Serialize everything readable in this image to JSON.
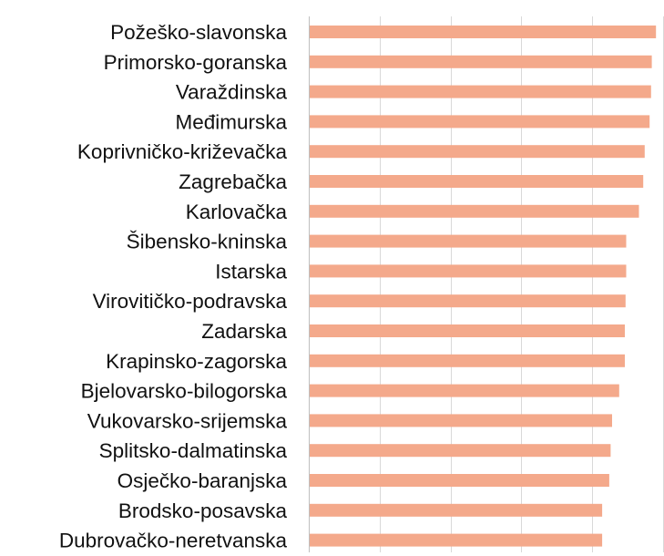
{
  "chart_data": {
    "type": "bar",
    "orientation": "horizontal",
    "categories": [
      "Požeško-slavonska",
      "Primorsko-goranska",
      "Varaždinska",
      "Međimurska",
      "Koprivničko-križevačka",
      "Zagrebačka",
      "Karlovačka",
      "Šibensko-kninska",
      "Istarska",
      "Virovitičko-podravska",
      "Zadarska",
      "Krapinsko-zagorska",
      "Bjelovarsko-bilogorska",
      "Vukovarsko-srijemska",
      "Splitsko-dalmatinska",
      "Osječko-baranjska",
      "Brodsko-posavska",
      "Dubrovačko-neretvanska"
    ],
    "values": [
      4.9,
      4.84,
      4.83,
      4.81,
      4.74,
      4.72,
      4.66,
      4.48,
      4.48,
      4.47,
      4.46,
      4.46,
      4.38,
      4.28,
      4.26,
      4.24,
      4.14,
      4.14
    ],
    "xlim": [
      0,
      5
    ],
    "grid": true,
    "bar_color": "#f4a98b",
    "grid_color": "#d9d9d9",
    "title": "",
    "xlabel": "",
    "ylabel": ""
  }
}
